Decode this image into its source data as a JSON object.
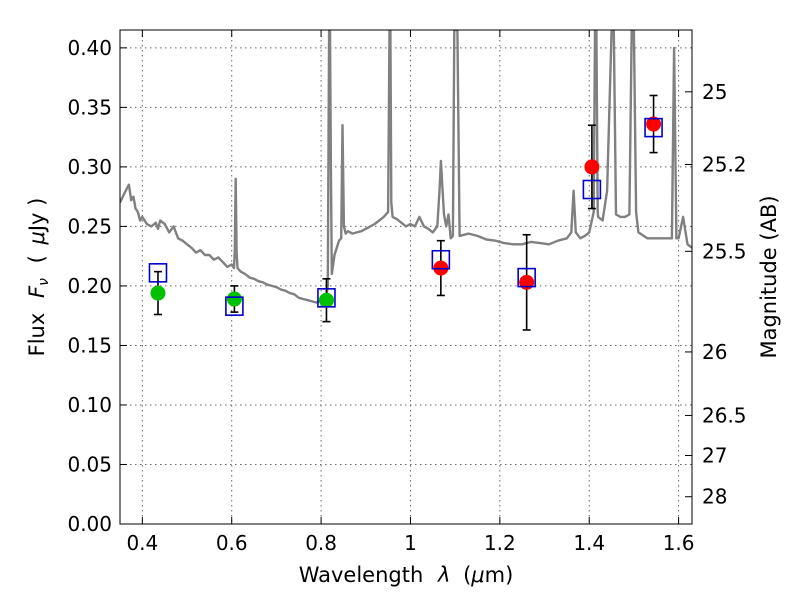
{
  "chart_data": {
    "type": "scatter",
    "xlabel_main": "Wavelength",
    "xlabel_symbol": "λ",
    "xlabel_unit_prefix": "(",
    "xlabel_unit_mu": "μ",
    "xlabel_unit_suffix": "m)",
    "ylabel_main": "Flux",
    "ylabel_symbol": "F",
    "ylabel_symbol_sub": "ν",
    "ylabel_unit_prefix": "(",
    "ylabel_unit_mu": "μ",
    "ylabel_unit_suffix": "Jy )",
    "y2label": "Magnitude (AB)",
    "xlim": [
      0.35,
      1.63
    ],
    "ylim": [
      0.0,
      0.415
    ],
    "grid": true,
    "x_ticks": [
      {
        "value": 0.4,
        "label": "0.4"
      },
      {
        "value": 0.6,
        "label": "0.6"
      },
      {
        "value": 0.8,
        "label": "0.8"
      },
      {
        "value": 1.0,
        "label": "1"
      },
      {
        "value": 1.2,
        "label": "1.2"
      },
      {
        "value": 1.4,
        "label": "1.4"
      },
      {
        "value": 1.6,
        "label": "1.6"
      }
    ],
    "y_ticks": [
      {
        "value": 0.0,
        "label": "0.00"
      },
      {
        "value": 0.05,
        "label": "0.05"
      },
      {
        "value": 0.1,
        "label": "0.10"
      },
      {
        "value": 0.15,
        "label": "0.15"
      },
      {
        "value": 0.2,
        "label": "0.20"
      },
      {
        "value": 0.25,
        "label": "0.25"
      },
      {
        "value": 0.3,
        "label": "0.30"
      },
      {
        "value": 0.35,
        "label": "0.35"
      },
      {
        "value": 0.4,
        "label": "0.40"
      }
    ],
    "y2_ticks": [
      {
        "value": 25,
        "label": "25"
      },
      {
        "value": 25.2,
        "label": "25.2"
      },
      {
        "value": 25.5,
        "label": "25.5"
      },
      {
        "value": 26,
        "label": "26"
      },
      {
        "value": 26.5,
        "label": "26.5"
      },
      {
        "value": 27,
        "label": "27"
      },
      {
        "value": 28,
        "label": "28"
      }
    ],
    "colors": {
      "spectrum": "#808080",
      "optical": "#00c000",
      "infrared": "#ff0000",
      "model": "#0000cc",
      "errorbar": "#000000"
    },
    "spectrum": {
      "x": [
        0.35,
        0.36,
        0.37,
        0.375,
        0.38,
        0.385,
        0.39,
        0.395,
        0.4,
        0.41,
        0.42,
        0.43,
        0.435,
        0.44,
        0.45,
        0.46,
        0.47,
        0.48,
        0.49,
        0.5,
        0.51,
        0.52,
        0.53,
        0.54,
        0.55,
        0.56,
        0.57,
        0.58,
        0.59,
        0.6,
        0.605,
        0.607,
        0.609,
        0.611,
        0.613,
        0.62,
        0.63,
        0.64,
        0.65,
        0.66,
        0.67,
        0.68,
        0.69,
        0.7,
        0.71,
        0.72,
        0.73,
        0.74,
        0.75,
        0.76,
        0.77,
        0.78,
        0.79,
        0.8,
        0.805,
        0.81,
        0.815,
        0.818,
        0.82,
        0.822,
        0.824,
        0.83,
        0.84,
        0.845,
        0.848,
        0.851,
        0.855,
        0.86,
        0.87,
        0.88,
        0.89,
        0.9,
        0.91,
        0.92,
        0.93,
        0.94,
        0.95,
        0.953,
        0.955,
        0.957,
        0.96,
        0.97,
        0.98,
        0.99,
        1.0,
        1.01,
        1.02,
        1.03,
        1.04,
        1.05,
        1.06,
        1.065,
        1.068,
        1.072,
        1.075,
        1.08,
        1.085,
        1.09,
        1.095,
        1.098,
        1.1,
        1.102,
        1.105,
        1.11,
        1.13,
        1.15,
        1.17,
        1.19,
        1.21,
        1.23,
        1.25,
        1.27,
        1.29,
        1.31,
        1.33,
        1.35,
        1.36,
        1.365,
        1.37,
        1.38,
        1.39,
        1.4,
        1.41,
        1.413,
        1.416,
        1.419,
        1.42,
        1.43,
        1.44,
        1.45,
        1.455,
        1.46,
        1.47,
        1.48,
        1.49,
        1.495,
        1.5,
        1.505,
        1.51,
        1.53,
        1.55,
        1.57,
        1.585,
        1.59,
        1.595,
        1.6,
        1.61,
        1.62,
        1.63
      ],
      "y": [
        0.27,
        0.278,
        0.285,
        0.272,
        0.275,
        0.265,
        0.262,
        0.255,
        0.258,
        0.252,
        0.25,
        0.253,
        0.248,
        0.255,
        0.252,
        0.245,
        0.25,
        0.24,
        0.238,
        0.235,
        0.232,
        0.228,
        0.23,
        0.226,
        0.226,
        0.222,
        0.224,
        0.22,
        0.216,
        0.218,
        0.215,
        0.23,
        0.29,
        0.228,
        0.215,
        0.212,
        0.21,
        0.207,
        0.206,
        0.204,
        0.203,
        0.201,
        0.2,
        0.199,
        0.197,
        0.196,
        0.194,
        0.193,
        0.19,
        0.189,
        0.188,
        0.187,
        0.186,
        0.188,
        0.186,
        0.187,
        0.2,
        0.415,
        0.415,
        0.3,
        0.21,
        0.226,
        0.238,
        0.24,
        0.335,
        0.25,
        0.244,
        0.246,
        0.244,
        0.245,
        0.246,
        0.248,
        0.25,
        0.252,
        0.255,
        0.258,
        0.262,
        0.415,
        0.415,
        0.27,
        0.258,
        0.256,
        0.253,
        0.25,
        0.252,
        0.25,
        0.258,
        0.25,
        0.248,
        0.245,
        0.25,
        0.28,
        0.305,
        0.28,
        0.26,
        0.25,
        0.26,
        0.24,
        0.242,
        0.415,
        0.415,
        0.415,
        0.415,
        0.242,
        0.244,
        0.242,
        0.239,
        0.238,
        0.236,
        0.235,
        0.235,
        0.237,
        0.236,
        0.235,
        0.238,
        0.24,
        0.245,
        0.28,
        0.245,
        0.24,
        0.242,
        0.245,
        0.262,
        0.415,
        0.415,
        0.262,
        0.258,
        0.255,
        0.28,
        0.415,
        0.415,
        0.26,
        0.258,
        0.258,
        0.26,
        0.415,
        0.415,
        0.262,
        0.245,
        0.24,
        0.24,
        0.24,
        0.24,
        0.4,
        0.24,
        0.24,
        0.258,
        0.235,
        0.232
      ]
    },
    "series": [
      {
        "marker": "circle",
        "color": "#00c000",
        "points": [
          {
            "x": 0.435,
            "y": 0.194,
            "yerr_low": 0.018,
            "yerr_high": 0.018
          },
          {
            "x": 0.606,
            "y": 0.189,
            "yerr_low": 0.011,
            "yerr_high": 0.011
          },
          {
            "x": 0.812,
            "y": 0.188,
            "yerr_low": 0.018,
            "yerr_high": 0.018
          }
        ]
      },
      {
        "marker": "circle",
        "color": "#ff0000",
        "points": [
          {
            "x": 1.068,
            "y": 0.215,
            "yerr_low": 0.023,
            "yerr_high": 0.023
          },
          {
            "x": 1.26,
            "y": 0.203,
            "yerr_low": 0.04,
            "yerr_high": 0.04
          },
          {
            "x": 1.406,
            "y": 0.3,
            "yerr_low": 0.035,
            "yerr_high": 0.035
          },
          {
            "x": 1.544,
            "y": 0.336,
            "yerr_low": 0.024,
            "yerr_high": 0.024
          }
        ]
      },
      {
        "marker": "open-square",
        "color": "#0000cc",
        "points": [
          {
            "x": 0.435,
            "y": 0.211
          },
          {
            "x": 0.606,
            "y": 0.183
          },
          {
            "x": 0.812,
            "y": 0.19
          },
          {
            "x": 1.068,
            "y": 0.222
          },
          {
            "x": 1.26,
            "y": 0.207
          },
          {
            "x": 1.406,
            "y": 0.281
          },
          {
            "x": 1.544,
            "y": 0.333
          }
        ]
      }
    ]
  }
}
